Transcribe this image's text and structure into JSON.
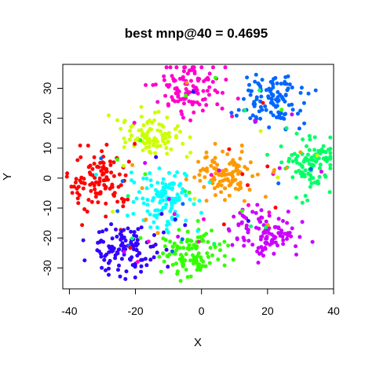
{
  "chart_data": {
    "type": "scatter",
    "title": "best mnp@40 = 0.4695",
    "xlabel": "X",
    "ylabel": "Y",
    "xlim": [
      -42,
      40
    ],
    "ylim": [
      -37,
      38
    ],
    "xticks": [
      -40,
      -20,
      0,
      20,
      40
    ],
    "yticks": [
      -30,
      -20,
      -10,
      0,
      10,
      20,
      30
    ],
    "grid": false,
    "legend": "none",
    "clusters": [
      {
        "color": "#ff0000",
        "center": [
          -31,
          -1
        ],
        "spread": [
          4.5,
          5.5
        ],
        "count": 110
      },
      {
        "color": "#ff00cc",
        "center": [
          -3,
          30
        ],
        "spread": [
          4.5,
          4.5
        ],
        "count": 110
      },
      {
        "color": "#0066ff",
        "center": [
          21,
          26
        ],
        "spread": [
          4.5,
          4.5
        ],
        "count": 110
      },
      {
        "color": "#ccff00",
        "center": [
          -15,
          14
        ],
        "spread": [
          4.5,
          3.5
        ],
        "count": 100
      },
      {
        "color": "#00ff66",
        "center": [
          33,
          4
        ],
        "spread": [
          3.5,
          4.5
        ],
        "count": 100
      },
      {
        "color": "#ff9900",
        "center": [
          7,
          1
        ],
        "spread": [
          4.5,
          4.0
        ],
        "count": 100
      },
      {
        "color": "#00ffff",
        "center": [
          -11,
          -8
        ],
        "spread": [
          4.5,
          5.0
        ],
        "count": 120
      },
      {
        "color": "#3300ff",
        "center": [
          -23,
          -24
        ],
        "spread": [
          5.0,
          4.0
        ],
        "count": 110
      },
      {
        "color": "#33ff00",
        "center": [
          -3,
          -25
        ],
        "spread": [
          4.5,
          4.0
        ],
        "count": 110
      },
      {
        "color": "#cc00ff",
        "center": [
          19,
          -18
        ],
        "spread": [
          5.0,
          4.0
        ],
        "count": 110
      }
    ]
  }
}
